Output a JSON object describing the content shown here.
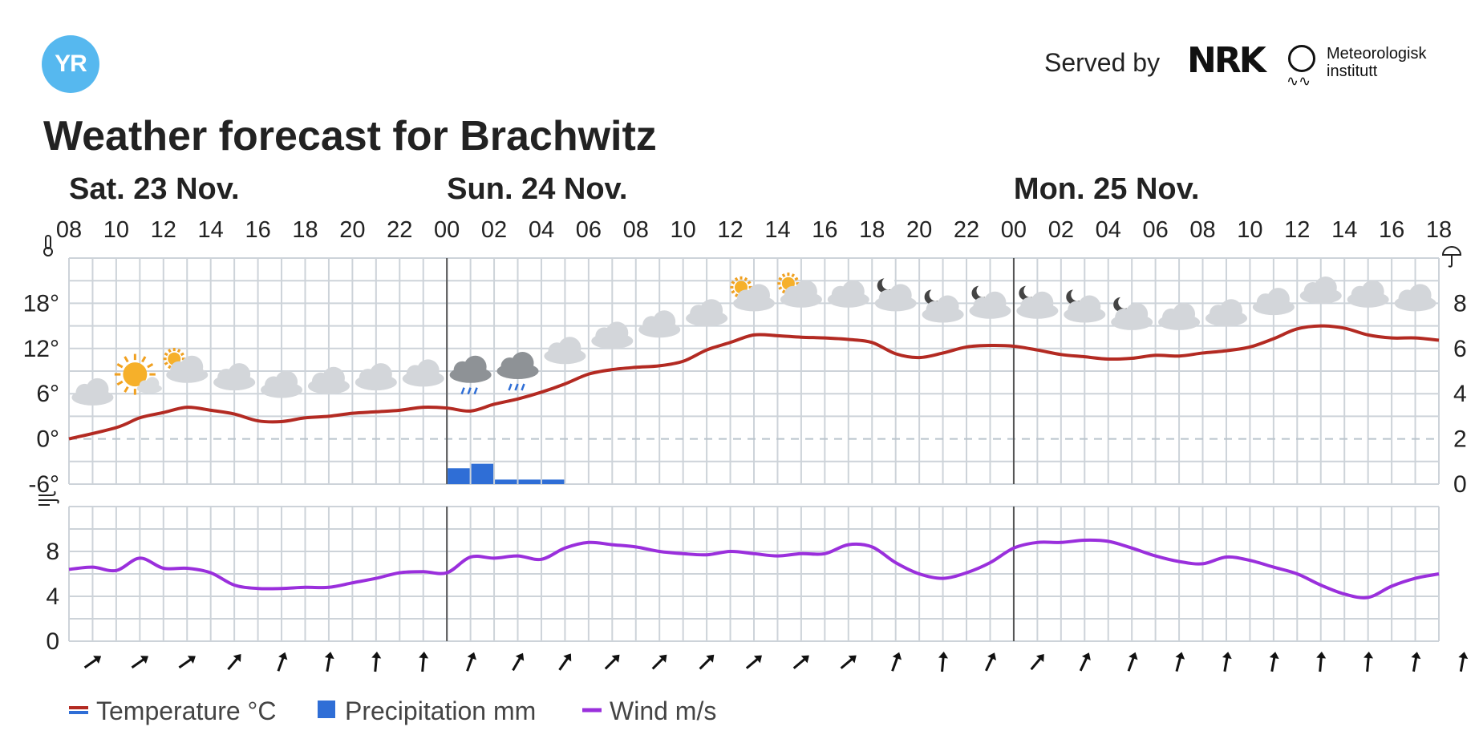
{
  "header": {
    "logo_text": "YR",
    "served_by": "Served by",
    "nrk": "NRK",
    "met_line1": "Meteorologisk",
    "met_line2": "institutt",
    "title": "Weather forecast for Brachwitz"
  },
  "colors": {
    "temperature": "#b32a22",
    "precipitation": "#2f6ed6",
    "wind": "#9a2fdc",
    "grid": "#cdd3d9",
    "zero_line": "#b9c3cc",
    "day_line": "#555555"
  },
  "chart_data": {
    "type": "line",
    "days": [
      {
        "label": "Sat. 23 Nov.",
        "start_hour_index": 0
      },
      {
        "label": "Sun. 24 Nov.",
        "start_hour_index": 16
      },
      {
        "label": "Mon. 25 Nov.",
        "start_hour_index": 40
      }
    ],
    "hour_labels": [
      "08",
      "10",
      "12",
      "14",
      "16",
      "18",
      "20",
      "22",
      "00",
      "02",
      "04",
      "06",
      "08",
      "10",
      "12",
      "14",
      "16",
      "18",
      "20",
      "22",
      "00",
      "02",
      "04",
      "06",
      "08",
      "10",
      "12",
      "14",
      "16",
      "18"
    ],
    "temperature": {
      "name": "Temperature °C",
      "y_ticks": [
        "18°",
        "12°",
        "6°",
        "0°",
        "-6°"
      ],
      "ylim": [
        -6,
        24
      ],
      "x": [
        0,
        2,
        3,
        4,
        5,
        6,
        7,
        8,
        9,
        10,
        11,
        12,
        13,
        14,
        15,
        16,
        17,
        18,
        19,
        20,
        21,
        22,
        23,
        24,
        25,
        26,
        27,
        28,
        29,
        30,
        31,
        32,
        33,
        34,
        35,
        36,
        37,
        38,
        39,
        40,
        41,
        42,
        43,
        44,
        45,
        46,
        47,
        48,
        49,
        50,
        51,
        52,
        53,
        54,
        55,
        56,
        57,
        58
      ],
      "values": [
        0,
        1.5,
        2.8,
        3.5,
        4.2,
        3.8,
        3.3,
        2.4,
        2.3,
        2.8,
        3.0,
        3.4,
        3.6,
        3.8,
        4.2,
        4.1,
        3.7,
        4.6,
        5.3,
        6.2,
        7.3,
        8.6,
        9.2,
        9.5,
        9.7,
        10.3,
        11.8,
        12.8,
        13.8,
        13.7,
        13.5,
        13.4,
        13.2,
        12.8,
        11.3,
        10.8,
        11.4,
        12.2,
        12.4,
        12.3,
        11.8,
        11.2,
        10.9,
        10.6,
        10.7,
        11.1,
        11.0,
        11.4,
        11.7,
        12.2,
        13.3,
        14.6,
        15.0,
        14.7,
        13.8,
        13.4,
        13.4,
        13.1
      ]
    },
    "precipitation": {
      "name": "Precipitation mm",
      "y_ticks": [
        "8",
        "6",
        "4",
        "2",
        "0"
      ],
      "ylim": [
        0,
        10
      ],
      "start_index": 16,
      "values": [
        0.7,
        0.9,
        0.2,
        0.2,
        0.2
      ]
    },
    "wind": {
      "name": "Wind m/s",
      "y_ticks": [
        "8",
        "4",
        "0"
      ],
      "ylim": [
        0,
        12
      ],
      "x": [
        0,
        1,
        2,
        3,
        4,
        5,
        6,
        7,
        8,
        9,
        10,
        11,
        12,
        13,
        14,
        15,
        16,
        17,
        18,
        19,
        20,
        21,
        22,
        23,
        24,
        25,
        26,
        27,
        28,
        29,
        30,
        31,
        32,
        33,
        34,
        35,
        36,
        37,
        38,
        39,
        40,
        41,
        42,
        43,
        44,
        45,
        46,
        47,
        48,
        49,
        50,
        51,
        52,
        53,
        54,
        55,
        56,
        57,
        58
      ],
      "values": [
        6.4,
        6.6,
        6.3,
        7.4,
        6.5,
        6.5,
        6.1,
        5.0,
        4.7,
        4.7,
        4.8,
        4.8,
        5.2,
        5.6,
        6.1,
        6.2,
        6.1,
        7.5,
        7.4,
        7.6,
        7.3,
        8.3,
        8.8,
        8.6,
        8.4,
        8.0,
        7.8,
        7.7,
        8.0,
        7.8,
        7.6,
        7.8,
        7.8,
        8.6,
        8.4,
        7.0,
        6.0,
        5.6,
        6.1,
        7.0,
        8.3,
        8.8,
        8.8,
        9.0,
        8.9,
        8.3,
        7.6,
        7.1,
        6.9,
        7.5,
        7.2,
        6.6,
        6.0,
        5.0,
        4.2,
        3.9,
        4.9,
        5.6,
        6.0
      ],
      "arrow_angles": [
        55,
        55,
        55,
        40,
        20,
        10,
        5,
        5,
        20,
        30,
        35,
        45,
        45,
        45,
        50,
        50,
        50,
        20,
        5,
        25,
        40,
        25,
        20,
        15,
        10,
        10,
        5,
        5,
        10,
        10
      ]
    },
    "weather_symbols": [
      {
        "x": 1,
        "temp": 5.5,
        "icon": "cloud-icon"
      },
      {
        "x": 3,
        "temp": 7.5,
        "icon": "sun-cloud-icon"
      },
      {
        "x": 5,
        "temp": 8.5,
        "icon": "partly-cloudy-icon"
      },
      {
        "x": 7,
        "temp": 7.5,
        "icon": "cloud-icon"
      },
      {
        "x": 9,
        "temp": 6.5,
        "icon": "cloud-icon"
      },
      {
        "x": 11,
        "temp": 7.0,
        "icon": "cloud-icon"
      },
      {
        "x": 13,
        "temp": 7.5,
        "icon": "cloud-icon"
      },
      {
        "x": 15,
        "temp": 8.0,
        "icon": "cloud-icon"
      },
      {
        "x": 17,
        "temp": 8.5,
        "icon": "rain-cloud-icon"
      },
      {
        "x": 19,
        "temp": 9.0,
        "icon": "rain-cloud-icon"
      },
      {
        "x": 21,
        "temp": 11.0,
        "icon": "cloud-icon"
      },
      {
        "x": 23,
        "temp": 13.0,
        "icon": "cloud-icon"
      },
      {
        "x": 25,
        "temp": 14.5,
        "icon": "cloud-icon"
      },
      {
        "x": 27,
        "temp": 16.0,
        "icon": "cloud-icon"
      },
      {
        "x": 29,
        "temp": 18.0,
        "icon": "partly-cloudy-icon"
      },
      {
        "x": 31,
        "temp": 18.5,
        "icon": "partly-cloudy-icon"
      },
      {
        "x": 33,
        "temp": 18.5,
        "icon": "cloud-icon"
      },
      {
        "x": 35,
        "temp": 18.0,
        "icon": "cloud-night-icon"
      },
      {
        "x": 37,
        "temp": 16.5,
        "icon": "cloud-night-icon"
      },
      {
        "x": 39,
        "temp": 17.0,
        "icon": "cloud-night-icon"
      },
      {
        "x": 41,
        "temp": 17.0,
        "icon": "cloud-night-icon"
      },
      {
        "x": 43,
        "temp": 16.5,
        "icon": "cloud-night-icon"
      },
      {
        "x": 45,
        "temp": 15.5,
        "icon": "cloud-night-icon"
      },
      {
        "x": 47,
        "temp": 15.5,
        "icon": "cloud-icon"
      },
      {
        "x": 49,
        "temp": 16.0,
        "icon": "cloud-icon"
      },
      {
        "x": 51,
        "temp": 17.5,
        "icon": "cloud-icon"
      },
      {
        "x": 53,
        "temp": 19.0,
        "icon": "cloud-icon"
      },
      {
        "x": 55,
        "temp": 18.5,
        "icon": "cloud-icon"
      },
      {
        "x": 57,
        "temp": 18.0,
        "icon": "cloud-icon"
      }
    ],
    "legend": [
      {
        "label": "Temperature °C",
        "key": "temperature"
      },
      {
        "label": "Precipitation mm",
        "key": "precipitation"
      },
      {
        "label": "Wind m/s",
        "key": "wind"
      }
    ],
    "grid": true,
    "legend_position": "bottom-left"
  }
}
